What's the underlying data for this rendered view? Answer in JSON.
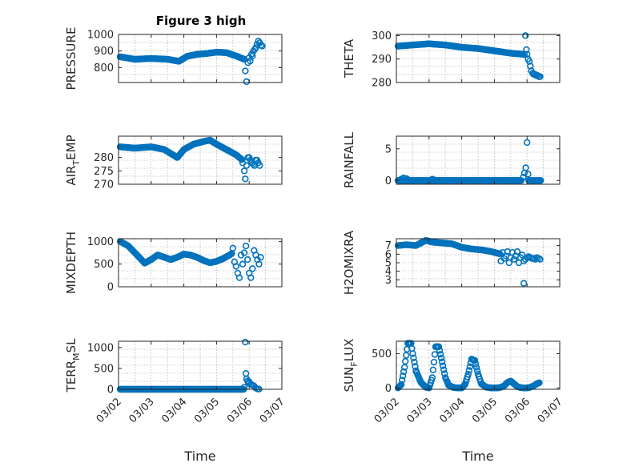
{
  "figure_title": "Figure 3 high",
  "colors": {
    "marker": "#0072BD",
    "axes": "#262626"
  },
  "chart_data": [
    {
      "id": "pressure",
      "type": "scatter",
      "ylabel": "PRESSURE",
      "ylabel_sub": "",
      "ylim": [
        710,
        1000
      ],
      "yticks": [
        "800",
        "900",
        "1000"
      ],
      "ytick_values": [
        800,
        900,
        1000
      ],
      "xlim": [
        0,
        5
      ],
      "grid": true,
      "segments": [
        {
          "x": [
            0.05,
            0.5,
            1.0,
            1.5,
            1.85,
            2.1,
            2.4,
            2.7,
            3.0,
            3.3,
            3.6,
            3.75,
            3.85
          ],
          "y": [
            865,
            850,
            855,
            850,
            838,
            868,
            880,
            885,
            893,
            890,
            870,
            858,
            850
          ],
          "step": 0.025
        }
      ],
      "points": {
        "x": [
          3.85,
          3.88,
          3.92,
          3.96,
          4.0,
          4.03,
          4.07,
          4.1,
          4.13,
          4.17,
          4.2,
          4.24,
          4.28,
          4.32,
          4.36,
          4.4
        ],
        "y": [
          850,
          780,
          715,
          830,
          860,
          840,
          880,
          870,
          900,
          910,
          920,
          940,
          960,
          950,
          935,
          930
        ]
      }
    },
    {
      "id": "theta",
      "type": "scatter",
      "ylabel": "THETA",
      "ylabel_sub": "",
      "ylim": [
        280,
        300.5
      ],
      "yticks": [
        "280",
        "290",
        "300"
      ],
      "ytick_values": [
        280,
        290,
        300
      ],
      "xlim": [
        0,
        5
      ],
      "grid": true,
      "segments": [
        {
          "x": [
            0.05,
            0.5,
            1.0,
            1.5,
            2.0,
            2.5,
            3.0,
            3.5,
            3.9
          ],
          "y": [
            295.5,
            296,
            296.5,
            296,
            295,
            294.5,
            293.5,
            292.5,
            292
          ],
          "step": 0.025
        }
      ],
      "points": {
        "x": [
          3.92,
          3.95,
          3.98,
          4.0,
          4.03,
          4.07,
          4.1,
          4.13,
          4.17,
          4.2,
          4.24,
          4.28,
          4.32,
          4.36,
          4.4
        ],
        "y": [
          292,
          300,
          294,
          292,
          290,
          289,
          287,
          285,
          284,
          283.5,
          283.5,
          283,
          283,
          282.5,
          282.5
        ]
      }
    },
    {
      "id": "air_temp",
      "type": "scatter",
      "ylabel": "AIR",
      "ylabel_sub": "T",
      "ylabel_tail": "EMP",
      "ylim": [
        270,
        288
      ],
      "yticks": [
        "270",
        "275",
        "280"
      ],
      "ytick_values": [
        270,
        275,
        280
      ],
      "xlim": [
        0,
        5
      ],
      "grid": true,
      "segments": [
        {
          "x": [
            0.05,
            0.5,
            1.0,
            1.4,
            1.8,
            2.0,
            2.3,
            2.6,
            2.8,
            3.0,
            3.3,
            3.6,
            3.8
          ],
          "y": [
            284,
            283.5,
            284,
            283,
            280,
            283,
            285,
            286,
            286.5,
            285,
            283,
            281,
            279
          ],
          "step": 0.025
        }
      ],
      "points": {
        "x": [
          3.8,
          3.85,
          3.88,
          3.92,
          3.96,
          4.0,
          4.04,
          4.08,
          4.12,
          4.16,
          4.2,
          4.24,
          4.28,
          4.32
        ],
        "y": [
          278,
          275,
          272,
          277,
          280,
          280,
          279,
          278,
          277.5,
          277,
          279,
          279,
          278,
          277
        ]
      }
    },
    {
      "id": "rainfall",
      "type": "scatter",
      "ylabel": "RAINFALL",
      "ylabel_sub": "",
      "ylim": [
        -0.6,
        7
      ],
      "yticks": [
        "0",
        "5"
      ],
      "ytick_values": [
        0,
        5
      ],
      "xlim": [
        0,
        5
      ],
      "grid": true,
      "segments": [
        {
          "x": [
            0.05,
            3.85
          ],
          "y": [
            0,
            0
          ],
          "step": 0.03
        },
        {
          "x": [
            4.05,
            4.45
          ],
          "y": [
            0,
            0
          ],
          "step": 0.03
        }
      ],
      "points": {
        "x": [
          0.15,
          0.22,
          0.3,
          0.35,
          1.1,
          1.15,
          3.88,
          3.92,
          3.96,
          4.0,
          4.03
        ],
        "y": [
          0.2,
          0.4,
          0.3,
          0.15,
          0.2,
          0.1,
          0.5,
          1.2,
          2.0,
          6.0,
          1.0
        ]
      }
    },
    {
      "id": "mixdepth",
      "type": "scatter",
      "ylabel": "MIXDEPTH",
      "ylabel_sub": "",
      "ylim": [
        0,
        1060
      ],
      "yticks": [
        "0",
        "500",
        "1000"
      ],
      "ytick_values": [
        0,
        500,
        1000
      ],
      "xlim": [
        0,
        5
      ],
      "grid": true,
      "segments": [
        {
          "x": [
            0.05,
            0.3,
            0.5,
            0.7,
            0.8,
            1.0,
            1.2,
            1.4,
            1.6,
            1.8,
            2.0,
            2.2,
            2.4,
            2.6,
            2.8,
            3.0,
            3.2,
            3.4,
            3.5
          ],
          "y": [
            1000,
            900,
            750,
            600,
            520,
            600,
            700,
            650,
            600,
            650,
            720,
            700,
            650,
            580,
            530,
            560,
            620,
            700,
            750
          ],
          "step": 0.03
        }
      ],
      "points": {
        "x": [
          3.5,
          3.55,
          3.6,
          3.65,
          3.7,
          3.75,
          3.8,
          3.85,
          3.9,
          3.95,
          4.0,
          4.05,
          4.1,
          4.15,
          4.2,
          4.25,
          4.3,
          4.35
        ],
        "y": [
          850,
          550,
          450,
          300,
          200,
          700,
          500,
          750,
          900,
          600,
          300,
          200,
          400,
          800,
          700,
          600,
          500,
          650
        ]
      }
    },
    {
      "id": "h2omixra",
      "type": "scatter",
      "ylabel": "H2OMIXRA",
      "ylabel_sub": "",
      "ylim": [
        2.2,
        7.8
      ],
      "yticks": [
        "3",
        "4",
        "5",
        "6",
        "7"
      ],
      "ytick_values": [
        3,
        4,
        5,
        6,
        7
      ],
      "xlim": [
        0,
        5
      ],
      "grid": true,
      "segments": [
        {
          "x": [
            0.05,
            0.3,
            0.6,
            0.9,
            1.1,
            1.4,
            1.7,
            2.0,
            2.3,
            2.6,
            2.9,
            3.2
          ],
          "y": [
            7.0,
            7.1,
            7.0,
            7.6,
            7.4,
            7.3,
            7.2,
            6.8,
            6.6,
            6.5,
            6.3,
            6.0
          ],
          "step": 0.03
        }
      ],
      "points": {
        "x": [
          3.2,
          3.25,
          3.3,
          3.35,
          3.4,
          3.45,
          3.5,
          3.55,
          3.6,
          3.65,
          3.7,
          3.75,
          3.8,
          3.85,
          3.9,
          3.95,
          4.0,
          4.05,
          4.1,
          4.15,
          4.2,
          4.25,
          4.3,
          4.35,
          4.4,
          3.9
        ],
        "y": [
          5.2,
          6.2,
          5.5,
          5.8,
          6.3,
          5.0,
          5.6,
          6.2,
          5.4,
          5.8,
          6.3,
          5.0,
          5.6,
          5.9,
          5.2,
          5.4,
          5.6,
          5.7,
          5.6,
          5.5,
          5.5,
          5.4,
          5.6,
          5.5,
          5.4,
          2.6
        ]
      }
    },
    {
      "id": "terr_msl",
      "type": "scatter",
      "ylabel": "TERR",
      "ylabel_sub": "M",
      "ylabel_tail": "SL",
      "ylim": [
        0,
        1150
      ],
      "yticks": [
        "0",
        "500",
        "1000"
      ],
      "ytick_values": [
        0,
        500,
        1000
      ],
      "xlim": [
        0,
        5
      ],
      "grid": true,
      "xticks": [
        "03/02",
        "03/03",
        "03/04",
        "03/05",
        "03/06",
        "03/07"
      ],
      "xtick_values": [
        0,
        1,
        2,
        3,
        4,
        5
      ],
      "xlabel": "Time",
      "segments": [
        {
          "x": [
            0.05,
            3.85
          ],
          "y": [
            0,
            0
          ],
          "step": 0.02
        }
      ],
      "points": {
        "x": [
          3.85,
          3.88,
          3.9,
          3.92,
          3.95,
          3.98,
          4.0,
          4.05,
          4.1,
          4.15,
          4.2,
          4.25,
          4.3
        ],
        "y": [
          50,
          1130,
          380,
          250,
          200,
          150,
          180,
          120,
          100,
          80,
          30,
          10,
          5
        ]
      }
    },
    {
      "id": "sun_flux",
      "type": "scatter",
      "ylabel": "SUN",
      "ylabel_sub": "F",
      "ylabel_tail": "LUX",
      "ylim": [
        -20,
        680
      ],
      "yticks": [
        "0",
        "500"
      ],
      "ytick_values": [
        0,
        500
      ],
      "xlim": [
        0,
        5
      ],
      "grid": true,
      "xticks": [
        "03/02",
        "03/03",
        "03/04",
        "03/05",
        "03/06",
        "03/07"
      ],
      "xtick_values": [
        0,
        1,
        2,
        3,
        4,
        5
      ],
      "xlabel": "Time",
      "segments": [
        {
          "x": [
            0.05,
            0.15,
            0.25,
            0.35,
            0.45,
            0.5,
            0.6,
            0.75,
            0.9,
            1.0,
            1.1,
            1.2,
            1.3,
            1.4,
            1.5,
            1.6,
            1.75,
            1.9,
            2.0,
            2.1,
            2.2,
            2.3,
            2.4,
            2.5,
            2.6,
            2.75,
            2.9,
            3.0,
            3.1,
            3.2,
            3.3,
            3.4,
            3.5,
            3.6,
            3.7,
            3.8,
            3.9,
            4.0,
            4.1,
            4.2,
            4.3,
            4.4
          ],
          "y": [
            0,
            50,
            300,
            650,
            650,
            500,
            250,
            80,
            10,
            0,
            150,
            600,
            600,
            380,
            150,
            40,
            5,
            0,
            0,
            50,
            200,
            420,
            400,
            200,
            60,
            10,
            0,
            0,
            0,
            10,
            30,
            80,
            100,
            60,
            20,
            5,
            0,
            0,
            10,
            30,
            60,
            80
          ],
          "step": 0.025
        }
      ],
      "points": {
        "x": [],
        "y": []
      }
    }
  ]
}
